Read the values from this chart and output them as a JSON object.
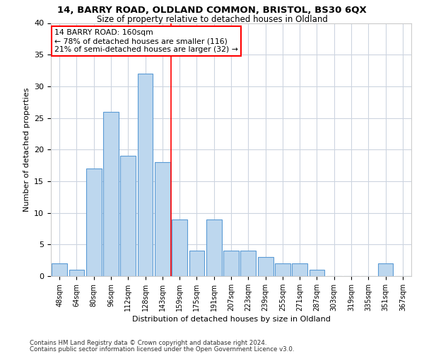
{
  "title1": "14, BARRY ROAD, OLDLAND COMMON, BRISTOL, BS30 6QX",
  "title2": "Size of property relative to detached houses in Oldland",
  "xlabel": "Distribution of detached houses by size in Oldland",
  "ylabel": "Number of detached properties",
  "categories": [
    "48sqm",
    "64sqm",
    "80sqm",
    "96sqm",
    "112sqm",
    "128sqm",
    "143sqm",
    "159sqm",
    "175sqm",
    "191sqm",
    "207sqm",
    "223sqm",
    "239sqm",
    "255sqm",
    "271sqm",
    "287sqm",
    "303sqm",
    "319sqm",
    "335sqm",
    "351sqm",
    "367sqm"
  ],
  "values": [
    2,
    1,
    17,
    26,
    19,
    32,
    18,
    9,
    4,
    9,
    4,
    4,
    3,
    2,
    2,
    1,
    0,
    0,
    0,
    2,
    0
  ],
  "bar_color": "#bdd7ee",
  "bar_edge_color": "#5b9bd5",
  "marker_index": 7,
  "marker_label": "14 BARRY ROAD: 160sqm",
  "pct_smaller": "78% of detached houses are smaller (116)",
  "pct_larger": "21% of semi-detached houses are larger (32)",
  "ylim": [
    0,
    40
  ],
  "yticks": [
    0,
    5,
    10,
    15,
    20,
    25,
    30,
    35,
    40
  ],
  "grid_color": "#cdd5e0",
  "footnote1": "Contains HM Land Registry data © Crown copyright and database right 2024.",
  "footnote2": "Contains public sector information licensed under the Open Government Licence v3.0."
}
